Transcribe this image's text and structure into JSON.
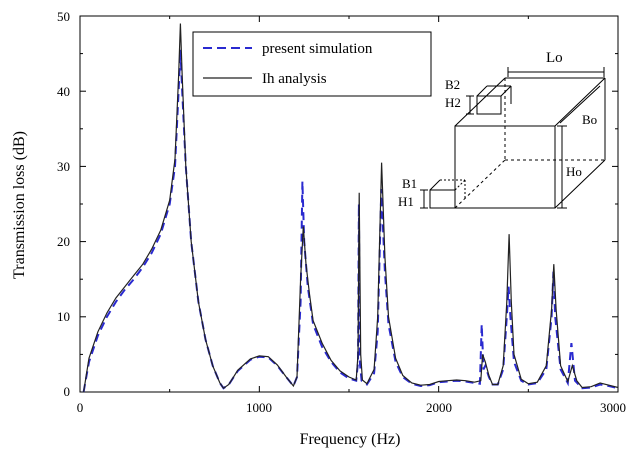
{
  "chart_data": {
    "type": "line",
    "xlabel": "Frequency (Hz)",
    "ylabel": "Transmission loss (dB)",
    "xlim": [
      0,
      3000
    ],
    "ylim": [
      0,
      50
    ],
    "x_ticks": [
      "0",
      "1000",
      "2000",
      "3000"
    ],
    "y_ticks": [
      "0",
      "10",
      "20",
      "30",
      "40",
      "50"
    ],
    "grid": false,
    "legend_position": "top-center",
    "series": [
      {
        "name": "present simulation",
        "style": "dashed",
        "color": "#2a2ad0",
        "points": [
          [
            20,
            0
          ],
          [
            50,
            4
          ],
          [
            100,
            7.5
          ],
          [
            150,
            10
          ],
          [
            200,
            12
          ],
          [
            250,
            13.6
          ],
          [
            300,
            15
          ],
          [
            350,
            16.6
          ],
          [
            400,
            18.5
          ],
          [
            450,
            21
          ],
          [
            500,
            25
          ],
          [
            530,
            30
          ],
          [
            550,
            40
          ],
          [
            560,
            45.5
          ],
          [
            570,
            40
          ],
          [
            590,
            30
          ],
          [
            620,
            20
          ],
          [
            660,
            12
          ],
          [
            700,
            7
          ],
          [
            740,
            3.5
          ],
          [
            780,
            1.2
          ],
          [
            800,
            0.5
          ],
          [
            830,
            1
          ],
          [
            880,
            2.8
          ],
          [
            950,
            4.3
          ],
          [
            1000,
            4.7
          ],
          [
            1050,
            4.6
          ],
          [
            1100,
            3.5
          ],
          [
            1150,
            2
          ],
          [
            1190,
            0.8
          ],
          [
            1210,
            2
          ],
          [
            1230,
            12
          ],
          [
            1240,
            28
          ],
          [
            1250,
            20
          ],
          [
            1270,
            14
          ],
          [
            1300,
            9
          ],
          [
            1350,
            6
          ],
          [
            1400,
            4
          ],
          [
            1450,
            2.6
          ],
          [
            1500,
            1.8
          ],
          [
            1540,
            1.5
          ],
          [
            1550,
            4
          ],
          [
            1555,
            25
          ],
          [
            1560,
            4
          ],
          [
            1570,
            1.5
          ],
          [
            1600,
            1
          ],
          [
            1640,
            2.5
          ],
          [
            1660,
            8
          ],
          [
            1680,
            27
          ],
          [
            1700,
            16
          ],
          [
            1720,
            9
          ],
          [
            1760,
            4
          ],
          [
            1800,
            2
          ],
          [
            1850,
            1.1
          ],
          [
            1900,
            0.8
          ],
          [
            1950,
            0.9
          ],
          [
            2000,
            1.3
          ],
          [
            2050,
            1.4
          ],
          [
            2100,
            1.5
          ],
          [
            2150,
            1.4
          ],
          [
            2200,
            1.2
          ],
          [
            2230,
            1.1
          ],
          [
            2240,
            9
          ],
          [
            2250,
            3
          ],
          [
            2260,
            3.5
          ],
          [
            2280,
            2
          ],
          [
            2300,
            1
          ],
          [
            2330,
            1
          ],
          [
            2360,
            3
          ],
          [
            2380,
            10
          ],
          [
            2390,
            14
          ],
          [
            2400,
            10
          ],
          [
            2420,
            4
          ],
          [
            2460,
            1.5
          ],
          [
            2500,
            1
          ],
          [
            2550,
            1.2
          ],
          [
            2600,
            3
          ],
          [
            2630,
            10
          ],
          [
            2640,
            16
          ],
          [
            2650,
            10
          ],
          [
            2680,
            3
          ],
          [
            2720,
            1.2
          ],
          [
            2740,
            6.5
          ],
          [
            2760,
            1.5
          ],
          [
            2800,
            0.5
          ],
          [
            2850,
            0.6
          ],
          [
            2900,
            1
          ],
          [
            2950,
            0.8
          ],
          [
            3000,
            0.5
          ]
        ]
      },
      {
        "name": "Ih analysis",
        "style": "solid",
        "color": "#222222",
        "points": [
          [
            20,
            0
          ],
          [
            50,
            4.5
          ],
          [
            100,
            8
          ],
          [
            150,
            10.5
          ],
          [
            200,
            12.5
          ],
          [
            250,
            14
          ],
          [
            300,
            15.5
          ],
          [
            350,
            17
          ],
          [
            400,
            19
          ],
          [
            450,
            21.5
          ],
          [
            500,
            25.5
          ],
          [
            530,
            31
          ],
          [
            550,
            42
          ],
          [
            560,
            49
          ],
          [
            570,
            42
          ],
          [
            590,
            30
          ],
          [
            620,
            20
          ],
          [
            660,
            12
          ],
          [
            700,
            7
          ],
          [
            740,
            3.5
          ],
          [
            780,
            1.2
          ],
          [
            800,
            0.5
          ],
          [
            830,
            1
          ],
          [
            880,
            2.9
          ],
          [
            950,
            4.4
          ],
          [
            1000,
            4.8
          ],
          [
            1050,
            4.7
          ],
          [
            1100,
            3.6
          ],
          [
            1150,
            2
          ],
          [
            1190,
            0.8
          ],
          [
            1210,
            2
          ],
          [
            1230,
            15
          ],
          [
            1245,
            22
          ],
          [
            1260,
            17
          ],
          [
            1280,
            13
          ],
          [
            1300,
            9.5
          ],
          [
            1350,
            6.5
          ],
          [
            1400,
            4.2
          ],
          [
            1450,
            2.8
          ],
          [
            1500,
            2
          ],
          [
            1540,
            1.6
          ],
          [
            1550,
            5
          ],
          [
            1557,
            26.5
          ],
          [
            1565,
            5
          ],
          [
            1575,
            1.6
          ],
          [
            1600,
            1.1
          ],
          [
            1640,
            3
          ],
          [
            1660,
            10
          ],
          [
            1682,
            30.5
          ],
          [
            1700,
            18
          ],
          [
            1720,
            10
          ],
          [
            1760,
            4.5
          ],
          [
            1800,
            2.2
          ],
          [
            1850,
            1.2
          ],
          [
            1900,
            0.9
          ],
          [
            1950,
            1
          ],
          [
            2000,
            1.4
          ],
          [
            2050,
            1.5
          ],
          [
            2100,
            1.6
          ],
          [
            2150,
            1.5
          ],
          [
            2200,
            1.3
          ],
          [
            2235,
            1.5
          ],
          [
            2245,
            5
          ],
          [
            2260,
            4
          ],
          [
            2280,
            2.2
          ],
          [
            2300,
            1
          ],
          [
            2330,
            1
          ],
          [
            2360,
            3.5
          ],
          [
            2380,
            12
          ],
          [
            2393,
            21
          ],
          [
            2405,
            12
          ],
          [
            2420,
            5
          ],
          [
            2460,
            1.7
          ],
          [
            2500,
            1.1
          ],
          [
            2550,
            1.3
          ],
          [
            2600,
            3.5
          ],
          [
            2630,
            11
          ],
          [
            2642,
            17
          ],
          [
            2655,
            11
          ],
          [
            2680,
            3.5
          ],
          [
            2720,
            1.4
          ],
          [
            2745,
            3.5
          ],
          [
            2770,
            1.5
          ],
          [
            2800,
            0.6
          ],
          [
            2850,
            0.7
          ],
          [
            2900,
            1.2
          ],
          [
            2950,
            0.9
          ],
          [
            3000,
            0.6
          ]
        ]
      }
    ],
    "inset_labels": {
      "lo": "Lo",
      "bo": "Bo",
      "ho": "Ho",
      "b1": "B1",
      "h1": "H1",
      "b2": "B2",
      "h2": "H2"
    }
  }
}
